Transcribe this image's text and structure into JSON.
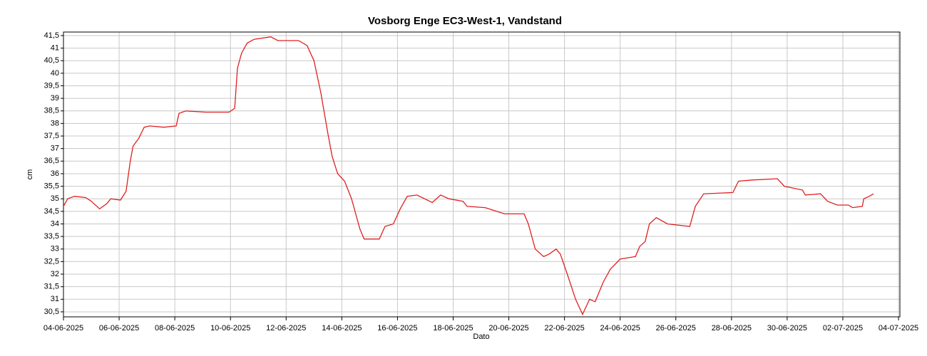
{
  "chart_data": {
    "type": "line",
    "title": "Vosborg Enge EC3-West-1, Vandstand",
    "x_label": "Dato",
    "y_label": "cm",
    "xlim": [
      0,
      30.05
    ],
    "ylim": [
      30.3,
      41.64
    ],
    "grid": true,
    "xticks": [
      {
        "value": 0,
        "label": "04-06-2025"
      },
      {
        "value": 2,
        "label": "06-06-2025"
      },
      {
        "value": 4,
        "label": "08-06-2025"
      },
      {
        "value": 6,
        "label": "10-06-2025"
      },
      {
        "value": 8,
        "label": "12-06-2025"
      },
      {
        "value": 10,
        "label": "14-06-2025"
      },
      {
        "value": 12,
        "label": "16-06-2025"
      },
      {
        "value": 14,
        "label": "18-06-2025"
      },
      {
        "value": 16,
        "label": "20-06-2025"
      },
      {
        "value": 18,
        "label": "22-06-2025"
      },
      {
        "value": 20,
        "label": "24-06-2025"
      },
      {
        "value": 22,
        "label": "26-06-2025"
      },
      {
        "value": 24,
        "label": "28-06-2025"
      },
      {
        "value": 26,
        "label": "30-06-2025"
      },
      {
        "value": 28,
        "label": "02-07-2025"
      },
      {
        "value": 30,
        "label": "04-07-2025"
      }
    ],
    "yticks": [
      {
        "value": 30.5,
        "label": "30,5"
      },
      31,
      {
        "value": 31.5,
        "label": "31,5"
      },
      32,
      {
        "value": 32.5,
        "label": "32,5"
      },
      33,
      {
        "value": 33.5,
        "label": "33,5"
      },
      34,
      {
        "value": 34.5,
        "label": "34,5"
      },
      35,
      {
        "value": 35.5,
        "label": "35,5"
      },
      36,
      {
        "value": 36.5,
        "label": "36,5"
      },
      37,
      {
        "value": 37.5,
        "label": "37,5"
      },
      38,
      {
        "value": 38.5,
        "label": "38,5"
      },
      39,
      {
        "value": 39.5,
        "label": "39,5"
      },
      40,
      {
        "value": 40.5,
        "label": "40,5"
      },
      41,
      {
        "value": 41.5,
        "label": "41,5"
      }
    ],
    "x": [
      0,
      0.15,
      0.4,
      0.8,
      1.0,
      1.3,
      1.55,
      1.7,
      2.05,
      2.25,
      2.4,
      2.5,
      2.7,
      2.9,
      3.1,
      3.6,
      4.05,
      4.15,
      4.4,
      5.1,
      5.95,
      6.15,
      6.25,
      6.4,
      6.6,
      6.85,
      7.45,
      7.7,
      8.45,
      8.75,
      9.0,
      9.25,
      9.5,
      9.65,
      9.85,
      10.1,
      10.35,
      10.65,
      10.8,
      11.35,
      11.55,
      11.85,
      12.1,
      12.35,
      12.7,
      13.25,
      13.55,
      13.85,
      14.35,
      14.5,
      15.15,
      15.85,
      16.55,
      16.7,
      16.95,
      17.25,
      17.45,
      17.7,
      17.85,
      18.1,
      18.4,
      18.65,
      18.9,
      19.1,
      19.4,
      19.65,
      20.0,
      20.55,
      20.7,
      20.9,
      21.05,
      21.3,
      21.7,
      22.5,
      22.7,
      23.0,
      24.05,
      24.25,
      24.75,
      25.65,
      25.9,
      26.55,
      26.65,
      27.2,
      27.45,
      27.8,
      28.2,
      28.35,
      28.7,
      28.75,
      28.95,
      29.1
    ],
    "series": [
      {
        "name": "Vandstand",
        "color": "#e02020",
        "values": [
          34.7,
          35.0,
          35.1,
          35.05,
          34.9,
          34.6,
          34.8,
          35.0,
          34.95,
          35.3,
          36.5,
          37.1,
          37.4,
          37.85,
          37.9,
          37.85,
          37.9,
          38.4,
          38.5,
          38.45,
          38.45,
          38.6,
          40.2,
          40.8,
          41.2,
          41.35,
          41.45,
          41.3,
          41.3,
          41.1,
          40.5,
          39.2,
          37.6,
          36.7,
          36.0,
          35.7,
          35.0,
          33.8,
          33.4,
          33.4,
          33.9,
          34.0,
          34.6,
          35.1,
          35.15,
          34.85,
          35.15,
          35.0,
          34.9,
          34.7,
          34.65,
          34.4,
          34.4,
          34.0,
          33.0,
          32.7,
          32.8,
          33.0,
          32.8,
          32.0,
          31.0,
          30.4,
          31.0,
          30.9,
          31.7,
          32.2,
          32.6,
          32.7,
          33.1,
          33.3,
          34.0,
          34.25,
          34.0,
          33.9,
          34.7,
          35.2,
          35.25,
          35.7,
          35.75,
          35.8,
          35.5,
          35.35,
          35.15,
          35.2,
          34.9,
          34.75,
          34.75,
          34.65,
          34.7,
          35.0,
          35.1,
          35.2
        ]
      }
    ]
  }
}
